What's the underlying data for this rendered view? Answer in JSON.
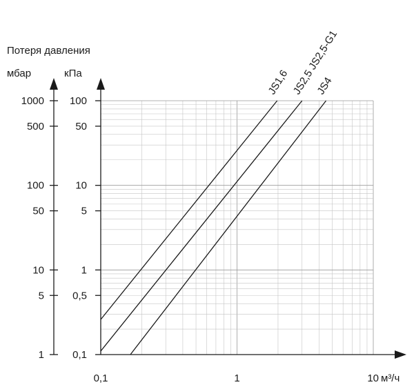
{
  "chart_data": {
    "type": "line",
    "title": "Потеря давления",
    "xlabel": "м³/ч",
    "x_scale": "log",
    "y_scale": "log",
    "xlim": [
      0.1,
      10
    ],
    "ylim_kpa": [
      0.1,
      100
    ],
    "ylim_mbar": [
      1,
      1000
    ],
    "grid": true,
    "x_ticks": [
      {
        "value": 0.1,
        "label": "0,1"
      },
      {
        "value": 1,
        "label": "1"
      },
      {
        "value": 10,
        "label": "10"
      }
    ],
    "y_axis_kpa": {
      "label": "кПа",
      "ticks": [
        {
          "value": 0.1,
          "label": "0,1"
        },
        {
          "value": 0.5,
          "label": "0,5"
        },
        {
          "value": 1,
          "label": "1"
        },
        {
          "value": 5,
          "label": "5"
        },
        {
          "value": 10,
          "label": "10"
        },
        {
          "value": 50,
          "label": "50"
        },
        {
          "value": 100,
          "label": "100"
        }
      ]
    },
    "y_axis_mbar": {
      "label": "мбар",
      "ticks": [
        {
          "value": 1,
          "label": "1"
        },
        {
          "value": 5,
          "label": "5"
        },
        {
          "value": 10,
          "label": "10"
        },
        {
          "value": 50,
          "label": "50"
        },
        {
          "value": 100,
          "label": "100"
        },
        {
          "value": 500,
          "label": "500"
        },
        {
          "value": 1000,
          "label": "1000"
        }
      ]
    },
    "series": [
      {
        "name": "JS1,6",
        "x": [
          0.1,
          1.97
        ],
        "y": [
          0.26,
          100
        ]
      },
      {
        "name": "JS2,5 JS2,5-G1",
        "x": [
          0.1,
          3.0
        ],
        "y": [
          0.11,
          100
        ]
      },
      {
        "name": "JS4",
        "x": [
          0.165,
          4.5
        ],
        "y": [
          0.1,
          100
        ]
      }
    ]
  }
}
